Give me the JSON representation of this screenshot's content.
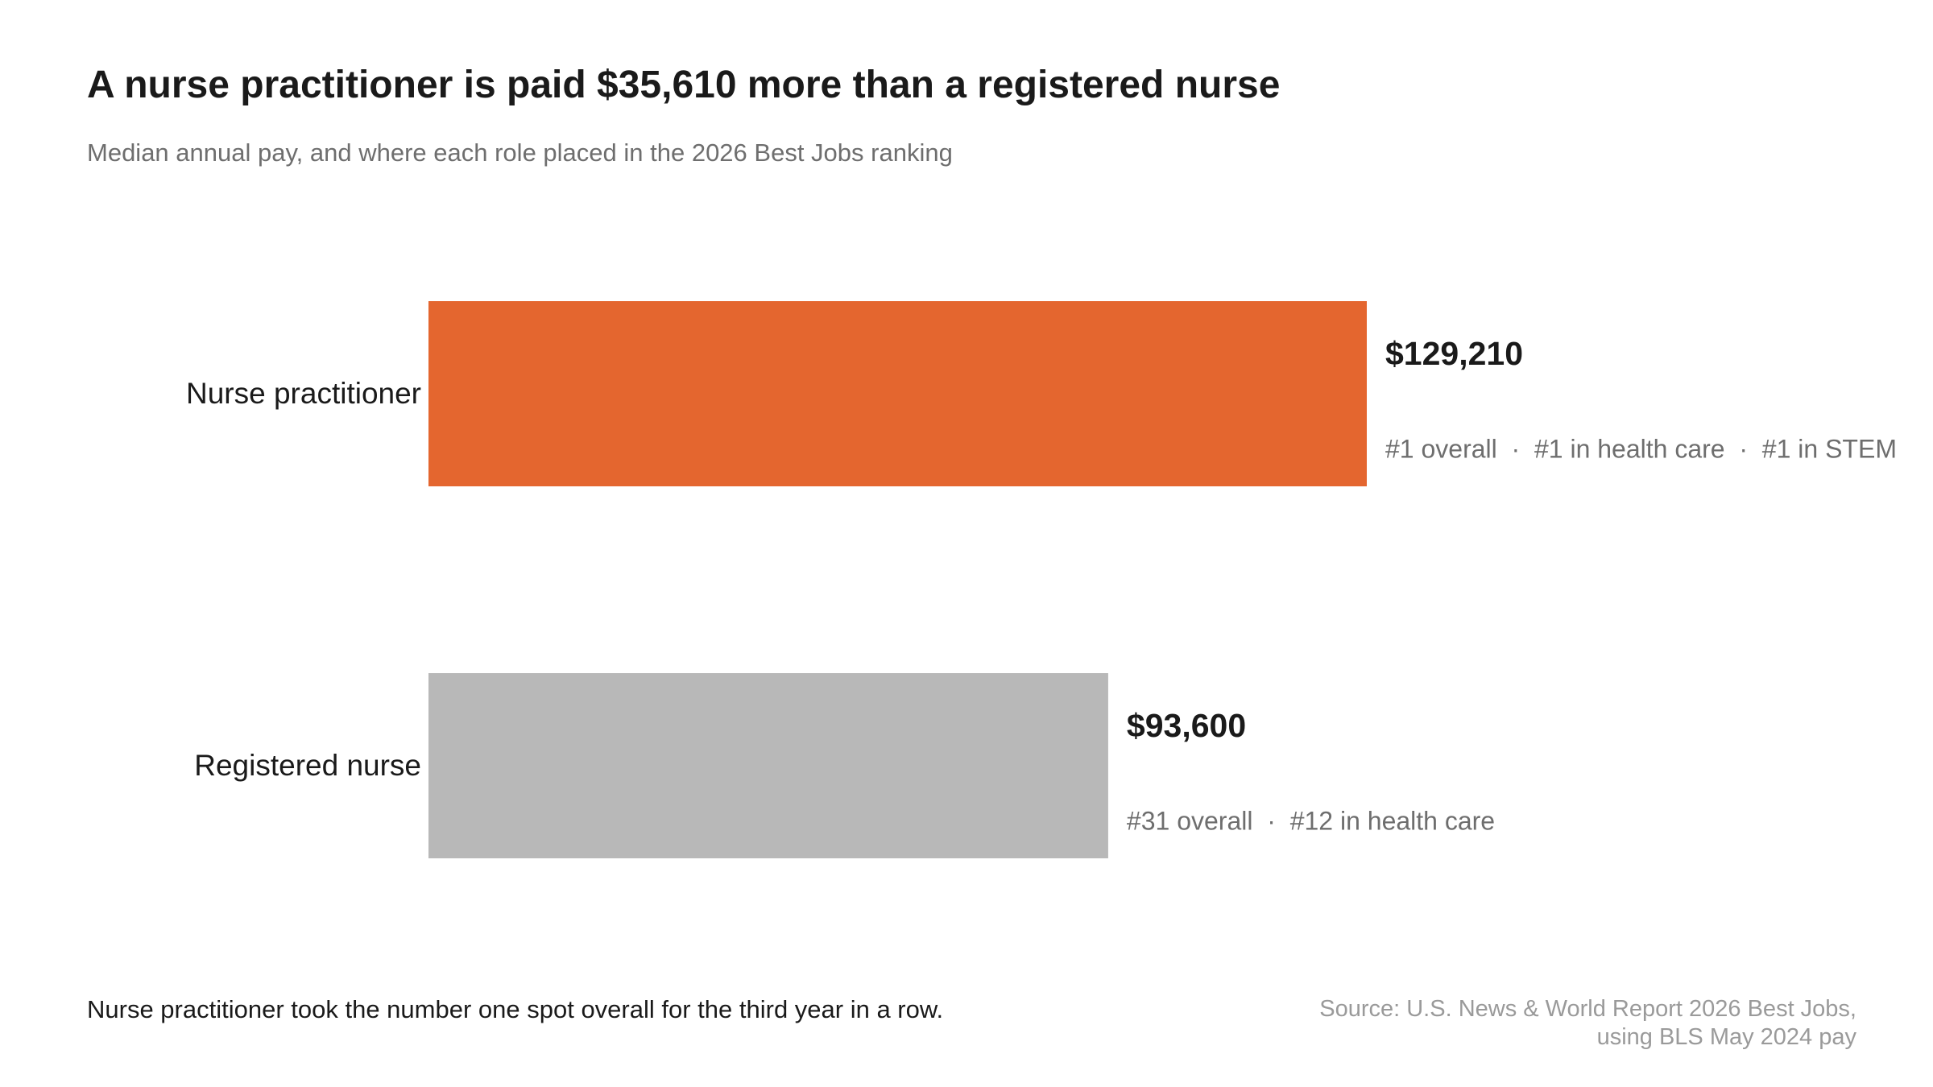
{
  "title": "A nurse practitioner is paid $35,610 more than a registered nurse",
  "subtitle": "Median annual pay, and where each role placed in the 2026 Best Jobs ranking",
  "footnote": "Nurse practitioner took the number one spot overall for the third year in a row.",
  "source": {
    "line1": "Source: U.S. News & World Report 2026 Best Jobs,",
    "line2": "using BLS May 2024 pay"
  },
  "colors": {
    "highlight": "#E4662F",
    "muted": "#B8B8B8",
    "rank_text": "#6E6E6E",
    "value_text": "#1A1A1A"
  },
  "chart_data": {
    "type": "bar",
    "orientation": "horizontal",
    "categories": [
      "Nurse practitioner",
      "Registered nurse"
    ],
    "values": [
      129210,
      93600
    ],
    "value_labels": [
      "$129,210",
      "$93,600"
    ],
    "rank_labels": [
      [
        "#1 overall",
        "#1 in health care",
        "#1 in STEM"
      ],
      [
        "#31 overall",
        "#12 in health care"
      ]
    ],
    "rank_separator": "·",
    "bar_colors": [
      "#E4662F",
      "#B8B8B8"
    ],
    "title": "A nurse practitioner is paid $35,610 more than a registered nurse",
    "xlabel": "",
    "ylabel": "",
    "xlim": [
      0,
      129210
    ],
    "grid": false,
    "legend": "none"
  }
}
